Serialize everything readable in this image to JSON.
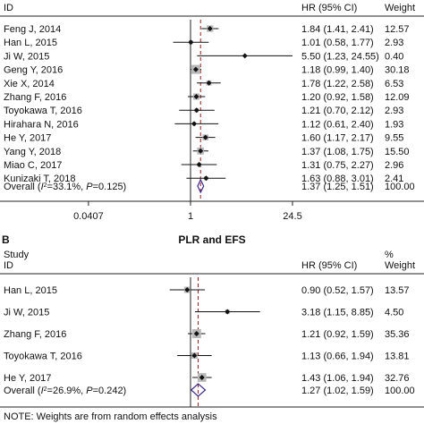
{
  "chart_data": [
    {
      "type": "forest",
      "panel_label": "",
      "title": "",
      "col_study": "ID",
      "col_effect": "HR (95% CI)",
      "col_weight": "Weight",
      "xaxis": {
        "scale": "log",
        "ticks": [
          0.0407,
          1,
          24.5
        ],
        "tick_labels": [
          "0.0407",
          "1",
          "24.5"
        ]
      },
      "reference_line": 1,
      "overall_line": 1.37,
      "studies": [
        {
          "id": "Feng J, 2014",
          "hr": 1.84,
          "lo": 1.41,
          "hi": 2.41,
          "text": "1.84 (1.41, 2.41)",
          "weight": "12.57"
        },
        {
          "id": "Han L, 2015",
          "hr": 1.01,
          "lo": 0.58,
          "hi": 1.77,
          "text": "1.01 (0.58, 1.77)",
          "weight": "2.93"
        },
        {
          "id": "Ji W, 2015",
          "hr": 5.5,
          "lo": 1.23,
          "hi": 24.55,
          "text": "5.50 (1.23, 24.55)",
          "weight": "0.40"
        },
        {
          "id": "Geng Y, 2016",
          "hr": 1.18,
          "lo": 0.99,
          "hi": 1.4,
          "text": "1.18 (0.99, 1.40)",
          "weight": "30.18"
        },
        {
          "id": "Xie X, 2014",
          "hr": 1.78,
          "lo": 1.22,
          "hi": 2.58,
          "text": "1.78 (1.22, 2.58)",
          "weight": "6.53"
        },
        {
          "id": "Zhang F, 2016",
          "hr": 1.2,
          "lo": 0.92,
          "hi": 1.58,
          "text": "1.20 (0.92, 1.58)",
          "weight": "12.09"
        },
        {
          "id": "Toyokawa T, 2016",
          "hr": 1.21,
          "lo": 0.7,
          "hi": 2.12,
          "text": "1.21 (0.70, 2.12)",
          "weight": "2.93"
        },
        {
          "id": "Hirahara N, 2016",
          "hr": 1.12,
          "lo": 0.61,
          "hi": 2.4,
          "text": "1.12 (0.61, 2.40)",
          "weight": "1.93"
        },
        {
          "id": "He Y, 2017",
          "hr": 1.6,
          "lo": 1.17,
          "hi": 2.17,
          "text": "1.60 (1.17, 2.17)",
          "weight": "9.55"
        },
        {
          "id": "Yang Y, 2018",
          "hr": 1.37,
          "lo": 1.08,
          "hi": 1.75,
          "text": "1.37 (1.08, 1.75)",
          "weight": "15.50"
        },
        {
          "id": "Miao C, 2017",
          "hr": 1.31,
          "lo": 0.75,
          "hi": 2.27,
          "text": "1.31 (0.75, 2.27)",
          "weight": "2.96"
        },
        {
          "id": "Kunizaki T, 2018",
          "hr": 1.63,
          "lo": 0.88,
          "hi": 3.01,
          "text": "1.63 (0.88, 3.01)",
          "weight": "2.41"
        }
      ],
      "overall": {
        "label_pre": "Overall (",
        "label_i2": "I",
        "label_sup": "2",
        "label_post": "=33.1%, ",
        "label_p": "P",
        "label_end": "=0.125)",
        "hr": 1.37,
        "lo": 1.25,
        "hi": 1.51,
        "text": "1.37 (1.25, 1.51)",
        "weight": "100.00"
      }
    },
    {
      "type": "forest",
      "panel_label": "B",
      "title": "PLR and EFS",
      "col_study_1": "Study",
      "col_study": "ID",
      "col_effect": "HR (95% CI)",
      "col_weight_1": "%",
      "col_weight": "Weight",
      "reference_line": 1,
      "overall_line": 1.27,
      "studies": [
        {
          "id": "Han L, 2015",
          "hr": 0.9,
          "lo": 0.52,
          "hi": 1.57,
          "text": "0.90 (0.52, 1.57)",
          "weight": "13.57"
        },
        {
          "id": "Ji W, 2015",
          "hr": 3.18,
          "lo": 1.15,
          "hi": 8.85,
          "text": "3.18 (1.15, 8.85)",
          "weight": "4.50"
        },
        {
          "id": "Zhang F, 2016",
          "hr": 1.21,
          "lo": 0.92,
          "hi": 1.59,
          "text": "1.21 (0.92, 1.59)",
          "weight": "35.36"
        },
        {
          "id": "Toyokawa T, 2016",
          "hr": 1.13,
          "lo": 0.66,
          "hi": 1.94,
          "text": "1.13 (0.66, 1.94)",
          "weight": "13.81"
        },
        {
          "id": "He Y, 2017",
          "hr": 1.43,
          "lo": 1.06,
          "hi": 1.94,
          "text": "1.43 (1.06, 1.94)",
          "weight": "32.76"
        }
      ],
      "overall": {
        "label_pre": "Overall (",
        "label_i2": "I",
        "label_sup": "2",
        "label_post": "=26.9%, ",
        "label_p": "P",
        "label_end": "=0.242)",
        "hr": 1.27,
        "lo": 1.02,
        "hi": 1.59,
        "text": "1.27 (1.02, 1.59)",
        "weight": "100.00"
      },
      "footnote": "NOTE: Weights are from random effects analysis"
    }
  ]
}
